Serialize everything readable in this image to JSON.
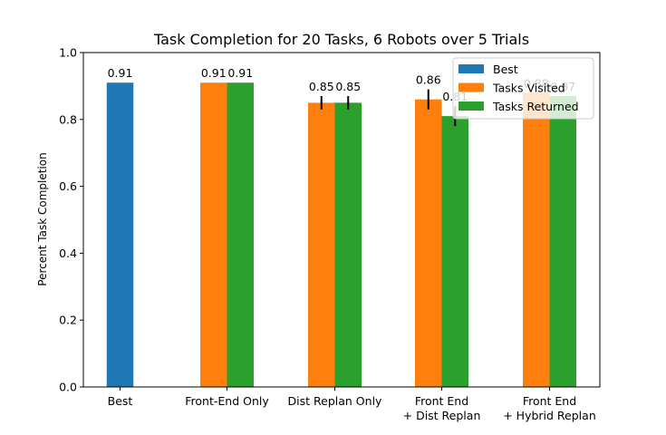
{
  "chart_data": {
    "type": "bar",
    "title": "Task Completion for 20 Tasks, 6 Robots over 5 Trials",
    "xlabel": "",
    "ylabel": "Percent Task Completion",
    "ylim": [
      0,
      1.0
    ],
    "yticks": [
      "0.0",
      "0.2",
      "0.4",
      "0.6",
      "0.8",
      "1.0"
    ],
    "categories": [
      "Best",
      "Front-End Only",
      "Dist Replan Only",
      "Front End\n+ Dist Replan",
      "Front End\n+ Hybrid Replan"
    ],
    "grid": false,
    "legend_position": "top-right",
    "series": [
      {
        "name": "Best",
        "color": "#1f77b4",
        "values": [
          0.91,
          null,
          null,
          null,
          null
        ],
        "errors": [
          0,
          null,
          null,
          null,
          null
        ],
        "labels": [
          "0.91",
          null,
          null,
          null,
          null
        ]
      },
      {
        "name": "Tasks Visited",
        "color": "#ff7f0e",
        "values": [
          null,
          0.91,
          0.85,
          0.86,
          0.88
        ],
        "errors": [
          null,
          0,
          0.02,
          0.03,
          0.0
        ],
        "labels": [
          null,
          "0.91",
          "0.85",
          "0.86",
          "0.88"
        ]
      },
      {
        "name": "Tasks Returned",
        "color": "#2ca02c",
        "values": [
          null,
          0.91,
          0.85,
          0.81,
          0.87
        ],
        "errors": [
          null,
          0,
          0.02,
          0.03,
          0.0
        ],
        "labels": [
          null,
          "0.91",
          "0.85",
          "0.81",
          "0.87"
        ]
      }
    ]
  }
}
